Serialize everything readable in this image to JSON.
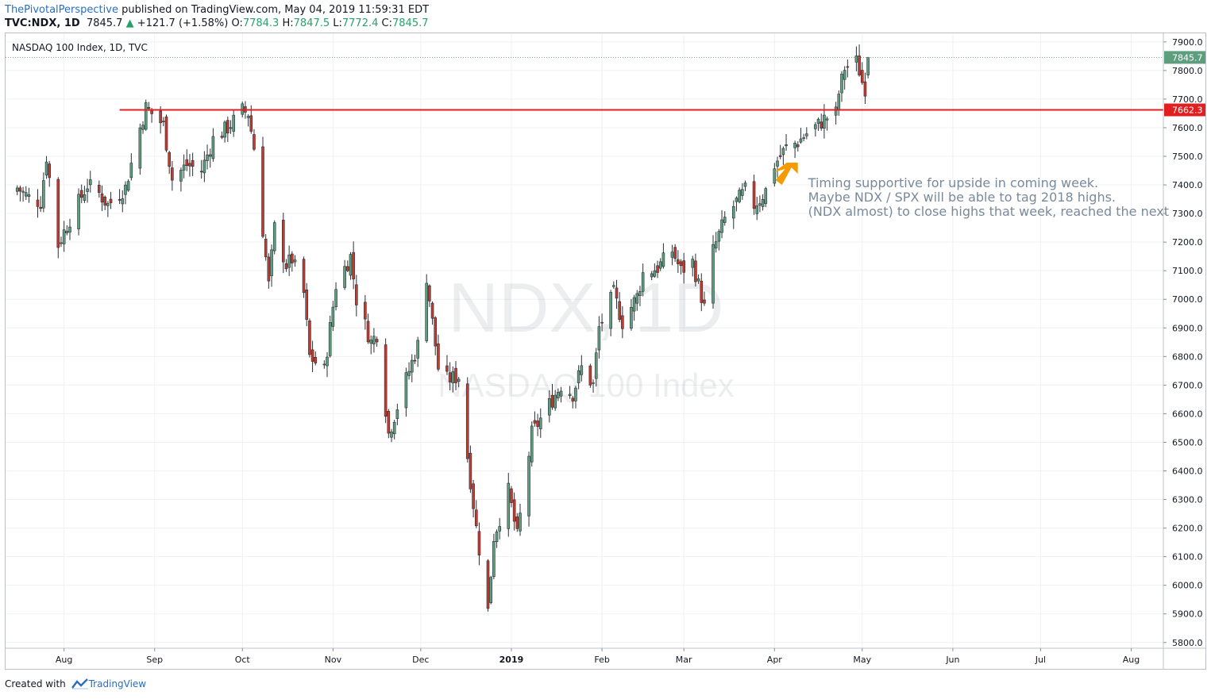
{
  "header": {
    "author": "ThePivotalPerspective",
    "published": " published on TradingView.com, May 04, 2019 11:59:31 EDT",
    "symbol": "TVC:NDX, 1D",
    "last": "7845.7",
    "change": "+121.7 (+1.58%)",
    "o_label": "O:",
    "o": "7784.3",
    "h_label": "H:",
    "h": "7847.5",
    "l_label": "L:",
    "l": "7772.4",
    "c_label": "C:",
    "c": "7845.7"
  },
  "footer": {
    "created": "Created with",
    "brand": "TradingView"
  },
  "colors": {
    "up": "#5c9e7e",
    "down": "#c23b2f",
    "line": "#e02020",
    "note": "#7a8a9a",
    "arrow": "#f59b00",
    "grid": "#eef0f3"
  },
  "chart_data": {
    "type": "candlestick",
    "title": "NASDAQ 100 Index, 1D, TVC",
    "watermark_symbol": "NDX, 1D",
    "watermark_name": "NASDAQ 100 Index",
    "ylim": [
      5780,
      7930
    ],
    "y_ticks": [
      5800,
      5900,
      6000,
      6100,
      6200,
      6300,
      6400,
      6500,
      6600,
      6700,
      6800,
      6900,
      7000,
      7100,
      7200,
      7300,
      7400,
      7500,
      7600,
      7700,
      7800,
      7900
    ],
    "x_ticks": [
      "Aug",
      "Sep",
      "Oct",
      "Nov",
      "Dec",
      "2019",
      "Feb",
      "Mar",
      "Apr",
      "May",
      "Jun",
      "Jul",
      "Aug"
    ],
    "x_tick_days": [
      0,
      31,
      61,
      92,
      122,
      153,
      184,
      212,
      243,
      273,
      304,
      334,
      365
    ],
    "x_day_range": [
      -20,
      376
    ],
    "x_date_origin": "2018-08-01",
    "last_price_label": "7845.7",
    "horizontal_line": {
      "value": 7662.3,
      "label": "7662.3",
      "start_date": "2018-08-20"
    },
    "annotation": [
      "Timing supportive for upside in coming week.",
      "Maybe NDX / SPX will be able to tag 2018 highs.",
      "(NDX almost) to close highs that week, reached the next"
    ],
    "annotation_date": "2019-04-03",
    "anchor_points": [
      [
        "2018-07-16",
        7390
      ],
      [
        "2018-07-20",
        7355
      ],
      [
        "2018-07-24",
        7340
      ],
      [
        "2018-07-26",
        7500
      ],
      [
        "2018-07-30",
        7190
      ],
      [
        "2018-08-02",
        7260
      ],
      [
        "2018-08-06",
        7340
      ],
      [
        "2018-08-09",
        7400
      ],
      [
        "2018-08-13",
        7370
      ],
      [
        "2018-08-16",
        7330
      ],
      [
        "2018-08-22",
        7390
      ],
      [
        "2018-08-27",
        7600
      ],
      [
        "2018-08-29",
        7670
      ],
      [
        "2018-09-04",
        7610
      ],
      [
        "2018-09-07",
        7420
      ],
      [
        "2018-09-12",
        7470
      ],
      [
        "2018-09-17",
        7450
      ],
      [
        "2018-09-21",
        7560
      ],
      [
        "2018-09-26",
        7600
      ],
      [
        "2018-10-01",
        7660
      ],
      [
        "2018-10-03",
        7650
      ],
      [
        "2018-10-05",
        7530
      ],
      [
        "2018-10-10",
        7050
      ],
      [
        "2018-10-12",
        7250
      ],
      [
        "2018-10-16",
        7120
      ],
      [
        "2018-10-18",
        7140
      ],
      [
        "2018-10-22",
        7020
      ],
      [
        "2018-10-24",
        6800
      ],
      [
        "2018-10-29",
        6750
      ],
      [
        "2018-11-02",
        7050
      ],
      [
        "2018-11-07",
        7150
      ],
      [
        "2018-11-09",
        7000
      ],
      [
        "2018-11-14",
        6850
      ],
      [
        "2018-11-16",
        6880
      ],
      [
        "2018-11-20",
        6530
      ],
      [
        "2018-11-26",
        6720
      ],
      [
        "2018-11-30",
        6840
      ],
      [
        "2018-12-03",
        7080
      ],
      [
        "2018-12-07",
        6760
      ],
      [
        "2018-12-10",
        6720
      ],
      [
        "2018-12-14",
        6730
      ],
      [
        "2018-12-17",
        6450
      ],
      [
        "2018-12-20",
        6200
      ],
      [
        "2018-12-24",
        5910
      ],
      [
        "2018-12-26",
        6170
      ],
      [
        "2018-12-31",
        6330
      ],
      [
        "2019-01-03",
        6170
      ],
      [
        "2019-01-08",
        6530
      ],
      [
        "2019-01-15",
        6650
      ],
      [
        "2019-01-18",
        6700
      ],
      [
        "2019-01-22",
        6670
      ],
      [
        "2019-01-25",
        6760
      ],
      [
        "2019-01-29",
        6700
      ],
      [
        "2019-01-31",
        6900
      ],
      [
        "2019-02-05",
        7020
      ],
      [
        "2019-02-08",
        6920
      ],
      [
        "2019-02-13",
        7010
      ],
      [
        "2019-02-15",
        7090
      ],
      [
        "2019-02-20",
        7110
      ],
      [
        "2019-02-25",
        7170
      ],
      [
        "2019-02-28",
        7100
      ],
      [
        "2019-03-04",
        7130
      ],
      [
        "2019-03-08",
        6970
      ],
      [
        "2019-03-11",
        7170
      ],
      [
        "2019-03-15",
        7280
      ],
      [
        "2019-03-19",
        7340
      ],
      [
        "2019-03-22",
        7380
      ],
      [
        "2019-03-25",
        7330
      ],
      [
        "2019-03-27",
        7350
      ],
      [
        "2019-03-29",
        7380
      ],
      [
        "2019-04-01",
        7470
      ],
      [
        "2019-04-05",
        7530
      ],
      [
        "2019-04-09",
        7550
      ],
      [
        "2019-04-12",
        7580
      ],
      [
        "2019-04-16",
        7610
      ],
      [
        "2019-04-18",
        7630
      ],
      [
        "2019-04-22",
        7650
      ],
      [
        "2019-04-23",
        7720
      ],
      [
        "2019-04-25",
        7810
      ],
      [
        "2019-04-29",
        7830
      ],
      [
        "2019-04-30",
        7800
      ],
      [
        "2019-05-01",
        7760
      ],
      [
        "2019-05-02",
        7740
      ],
      [
        "2019-05-03",
        7845.7
      ]
    ],
    "last_candle": {
      "date": "2019-05-03",
      "open": 7784.3,
      "high": 7847.5,
      "low": 7772.4,
      "close": 7845.7
    }
  }
}
